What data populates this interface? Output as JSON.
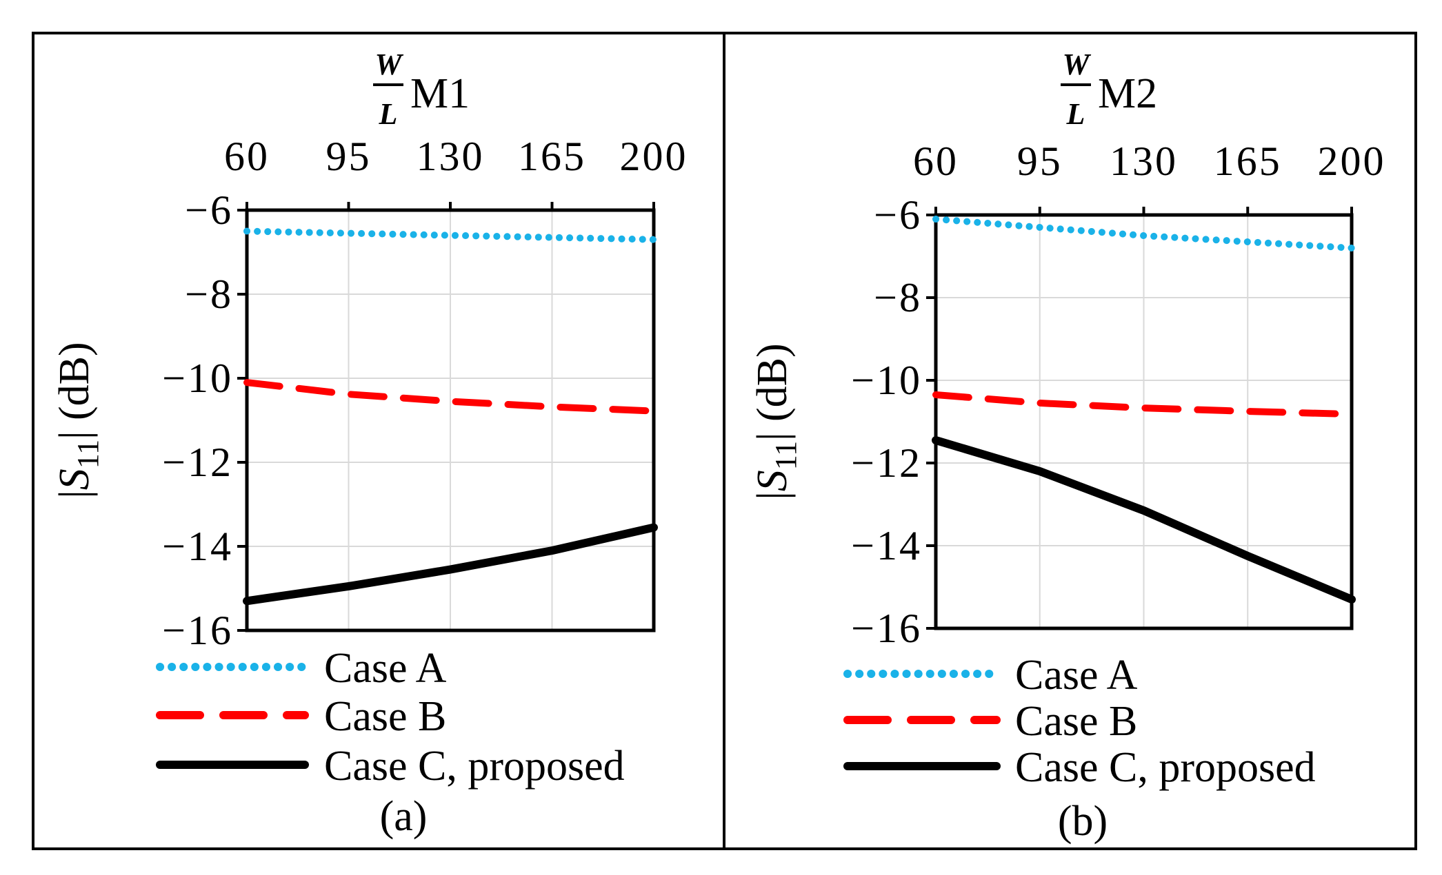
{
  "chart_data": [
    {
      "type": "line",
      "panel_label": "(a)",
      "top_axis": {
        "fraction_num": "W",
        "fraction_den": "L",
        "label": "M1"
      },
      "x_ticks": [
        "60",
        "95",
        "130",
        "165",
        "200"
      ],
      "xlim": [
        60,
        200
      ],
      "y_ticks": [
        "−6",
        "−8",
        "−10",
        "−12",
        "−14",
        "−16"
      ],
      "ylim": [
        -16,
        -6
      ],
      "ylabel": {
        "pre": "|",
        "sym": "S",
        "sub": "11",
        "post": "| (dB)"
      },
      "series": [
        {
          "name": "Case A",
          "style": "dotted",
          "color": "#1ab2e8",
          "x": [
            60,
            95,
            130,
            165,
            200
          ],
          "y": [
            -6.5,
            -6.55,
            -6.6,
            -6.65,
            -6.7
          ]
        },
        {
          "name": "Case B",
          "style": "dashed",
          "color": "#ff0000",
          "x": [
            60,
            95,
            130,
            165,
            200
          ],
          "y": [
            -10.1,
            -10.38,
            -10.55,
            -10.68,
            -10.78
          ]
        },
        {
          "name": "Case C, proposed",
          "style": "solid",
          "color": "#000000",
          "x": [
            60,
            95,
            130,
            165,
            200
          ],
          "y": [
            -15.3,
            -14.95,
            -14.55,
            -14.1,
            -13.55
          ]
        }
      ]
    },
    {
      "type": "line",
      "panel_label": "(b)",
      "top_axis": {
        "fraction_num": "W",
        "fraction_den": "L",
        "label": "M2"
      },
      "x_ticks": [
        "60",
        "95",
        "130",
        "165",
        "200"
      ],
      "xlim": [
        60,
        200
      ],
      "y_ticks": [
        "−6",
        "−8",
        "−10",
        "−12",
        "−14",
        "−16"
      ],
      "ylim": [
        -16,
        -6
      ],
      "ylabel": {
        "pre": "|",
        "sym": "S",
        "sub": "11",
        "post": "| (dB)"
      },
      "series": [
        {
          "name": "Case A",
          "style": "dotted",
          "color": "#1ab2e8",
          "x": [
            60,
            95,
            130,
            165,
            200
          ],
          "y": [
            -6.1,
            -6.3,
            -6.5,
            -6.65,
            -6.8
          ]
        },
        {
          "name": "Case B",
          "style": "dashed",
          "color": "#ff0000",
          "x": [
            60,
            95,
            130,
            165,
            200
          ],
          "y": [
            -10.35,
            -10.55,
            -10.67,
            -10.75,
            -10.82
          ]
        },
        {
          "name": "Case C, proposed",
          "style": "solid",
          "color": "#000000",
          "x": [
            60,
            95,
            130,
            165,
            200
          ],
          "y": [
            -11.45,
            -12.2,
            -13.15,
            -14.25,
            -15.3
          ]
        }
      ]
    }
  ]
}
